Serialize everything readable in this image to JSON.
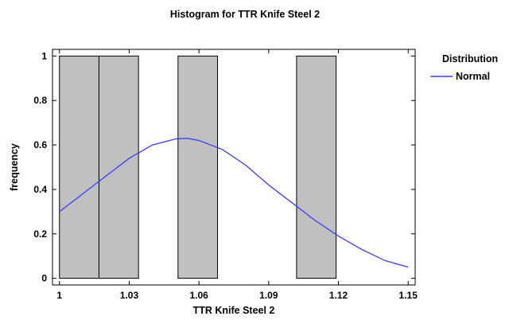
{
  "chart_data": {
    "type": "bar",
    "title": "Histogram for TTR Knife Steel 2",
    "xlabel": "TTR Knife Steel 2",
    "ylabel": "frequency",
    "xlim": [
      0.997,
      1.153
    ],
    "ylim": [
      -0.03,
      1.03
    ],
    "xticks": [
      "1",
      "1.03",
      "1.06",
      "1.09",
      "1.12",
      "1.15"
    ],
    "yticks": [
      "0",
      "0.2",
      "0.4",
      "0.6",
      "0.8",
      "1"
    ],
    "bins": [
      {
        "start": 1.0,
        "end": 1.017,
        "count": 1
      },
      {
        "start": 1.017,
        "end": 1.034,
        "count": 1
      },
      {
        "start": 1.051,
        "end": 1.068,
        "count": 1
      },
      {
        "start": 1.102,
        "end": 1.119,
        "count": 1
      }
    ],
    "series": [
      {
        "name": "Normal",
        "type": "line",
        "color": "#3b3bff",
        "x": [
          1.0,
          1.01,
          1.02,
          1.03,
          1.04,
          1.05,
          1.055,
          1.06,
          1.07,
          1.08,
          1.09,
          1.1,
          1.11,
          1.12,
          1.13,
          1.14,
          1.15
        ],
        "y": [
          0.3,
          0.38,
          0.46,
          0.54,
          0.6,
          0.627,
          0.63,
          0.62,
          0.58,
          0.51,
          0.42,
          0.34,
          0.26,
          0.19,
          0.13,
          0.08,
          0.05
        ]
      }
    ],
    "bar_color": "#c0c0c0",
    "legend": {
      "title": "Distribution",
      "position": "right",
      "entries": [
        "Normal"
      ]
    },
    "grid": false
  }
}
